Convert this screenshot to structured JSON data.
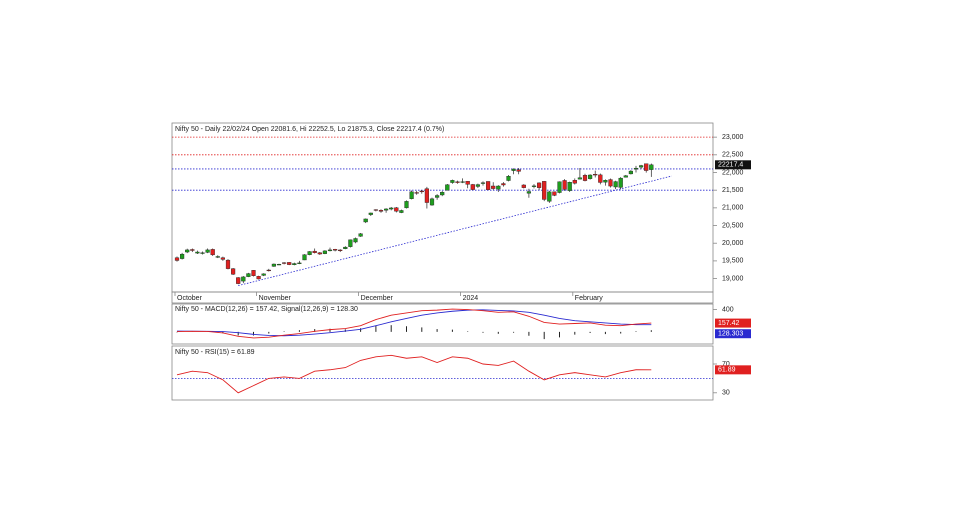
{
  "chart_data": [
    {
      "type": "candlestick",
      "title": "Nifty 50 - Daily 22/02/24 Open 22081.6, Hi 22252.5, Lo 21875.3, Close 22217.4 (0.7%)",
      "categories": [
        "October",
        null,
        null,
        null,
        null,
        null,
        null,
        null,
        null,
        null,
        null,
        null,
        null,
        null,
        null,
        null,
        "November",
        null,
        null,
        null,
        null,
        null,
        null,
        null,
        null,
        null,
        null,
        null,
        null,
        null,
        null,
        null,
        null,
        null,
        null,
        null,
        "December",
        null,
        null,
        null,
        null,
        null,
        null,
        null,
        null,
        null,
        null,
        null,
        null,
        null,
        null,
        null,
        null,
        null,
        null,
        null,
        "2024",
        null,
        null,
        null,
        null,
        null,
        null,
        null,
        null,
        null,
        null,
        null,
        null,
        null,
        null,
        null,
        null,
        null,
        null,
        null,
        null,
        null,
        "February",
        null,
        null,
        null,
        null,
        null,
        null,
        null,
        null,
        null,
        null,
        null,
        null,
        null,
        null,
        null
      ],
      "open": [
        19590,
        19565,
        19750,
        19822,
        19720,
        19730,
        19740,
        19825,
        19600,
        19590,
        19521,
        19280,
        19028,
        18928,
        19054,
        19233,
        19064,
        19090,
        19241,
        19345,
        19405,
        19449,
        19457,
        19390,
        19430,
        19526,
        19675,
        19775,
        19731,
        19704,
        19784,
        19828,
        19809,
        19844,
        19902,
        20034,
        20195,
        20601,
        20809,
        20950,
        20932,
        20934,
        20966,
        21004,
        20866,
        21000,
        21258,
        21434,
        21477,
        21543,
        21079,
        21295,
        21365,
        21497,
        21715,
        21737,
        21727,
        21752,
        21661,
        21605,
        21705,
        21747,
        21618,
        21529,
        21688,
        21773,
        22053,
        22080,
        21647,
        21414,
        21615,
        21706,
        21750,
        21185,
        21454,
        21433,
        21775,
        21487,
        21780,
        21812,
        21921,
        21825,
        21950,
        21933,
        21727,
        21800,
        21590,
        21578,
        21865,
        21961,
        22095,
        22152,
        22248,
        22081.6
      ],
      "high": [
        19625,
        19725,
        19845,
        19850,
        19790,
        19765,
        19850,
        19850,
        19660,
        19620,
        19550,
        19300,
        19040,
        19070,
        19160,
        19240,
        19080,
        19150,
        19275,
        19425,
        19420,
        19465,
        19465,
        19450,
        19500,
        19690,
        19775,
        19850,
        19750,
        19800,
        19875,
        19840,
        19830,
        19915,
        20105,
        20160,
        20290,
        20700,
        20865,
        20960,
        20960,
        20990,
        21025,
        21025,
        20950,
        21210,
        21490,
        21480,
        21505,
        21595,
        21290,
        21390,
        21475,
        21675,
        21800,
        21770,
        21835,
        21755,
        21677,
        21685,
        21750,
        21750,
        21725,
        21640,
        21726,
        21928,
        22115,
        22124,
        21670,
        21540,
        21670,
        21720,
        21760,
        21482,
        21460,
        21750,
        21813,
        21741,
        21832,
        22126,
        21964,
        21951,
        22053,
        21970,
        21805,
        21832,
        21766,
        21870,
        21931,
        22068,
        22187,
        22216,
        22249,
        22252.5
      ],
      "low": [
        19480,
        19540,
        19720,
        19750,
        19695,
        19680,
        19720,
        19640,
        19580,
        19500,
        19260,
        19100,
        18840,
        18870,
        19040,
        19060,
        18975,
        19070,
        19200,
        19330,
        19380,
        19400,
        19380,
        19375,
        19410,
        19520,
        19660,
        19710,
        19670,
        19690,
        19770,
        19770,
        19750,
        19830,
        19880,
        20000,
        20180,
        20570,
        20770,
        20900,
        20860,
        20860,
        20930,
        20870,
        20850,
        20980,
        21240,
        21370,
        21400,
        20980,
        21060,
        21230,
        21330,
        21490,
        21680,
        21680,
        21700,
        21555,
        21500,
        21560,
        21630,
        21500,
        21500,
        21450,
        21600,
        21750,
        21950,
        21950,
        21550,
        21285,
        21550,
        21500,
        21190,
        21140,
        21330,
        21410,
        21480,
        21450,
        21660,
        21805,
        21750,
        21800,
        21860,
        21665,
        21629,
        21574,
        21530,
        21530,
        21860,
        21945,
        22000,
        22100,
        21997,
        21875.3
      ],
      "close": [
        19512,
        19690,
        19811,
        19794,
        19751,
        19731,
        19811,
        19671,
        19624,
        19542,
        19281,
        19122,
        18857,
        19047,
        19141,
        19079,
        18989,
        19133,
        19230,
        19411,
        19406,
        19443,
        19395,
        19425,
        19443,
        19675,
        19765,
        19731,
        19694,
        19783,
        19811,
        19802,
        19794,
        19889,
        20096,
        20133,
        20267,
        20686,
        20855,
        20937,
        20901,
        20969,
        20997,
        20906,
        20926,
        21183,
        21456,
        21418,
        21453,
        21150,
        21255,
        21349,
        21441,
        21654,
        21778,
        21731,
        21741,
        21665,
        21517,
        21658,
        21710,
        21513,
        21545,
        21618,
        21647,
        21894,
        22097,
        22032,
        21571,
        21462,
        21622,
        21571,
        21238,
        21453,
        21352,
        21737,
        21522,
        21725,
        21697,
        21853,
        21771,
        21929,
        21930,
        21718,
        21782,
        21616,
        21743,
        21840,
        21910,
        22040,
        22122,
        22197,
        22055,
        22217.4
      ],
      "up_color": "#1e9e1e",
      "down_color": "#e02020",
      "ylim": [
        18620,
        23400
      ],
      "yticks": [
        {
          "value": 23000,
          "label": "23,000"
        },
        {
          "value": 22500,
          "label": "22,500"
        },
        {
          "value": 22000,
          "label": "22,000"
        },
        {
          "value": 21500,
          "label": "21,500"
        },
        {
          "value": 21000,
          "label": "21,000"
        },
        {
          "value": 20500,
          "label": "20,500"
        },
        {
          "value": 20000,
          "label": "20,000"
        },
        {
          "value": 19500,
          "label": "19,500"
        },
        {
          "value": 19000,
          "label": "19,000"
        }
      ],
      "levels": [
        {
          "value": 23000,
          "color": "#e02020"
        },
        {
          "value": 22500,
          "color": "#e02020"
        },
        {
          "value": 22100,
          "color": "#2a2ad0"
        },
        {
          "value": 21500,
          "color": "#2a2ad0"
        }
      ],
      "trendline": {
        "x": [
          12,
          97
        ],
        "values": [
          18800,
          21900
        ],
        "color": "#2a2ad0"
      },
      "price_tag": {
        "value": 22217.4,
        "label": "22217.4"
      }
    },
    {
      "type": "macd",
      "title": "Nifty 50 - MACD(12,26) = 157.42, Signal(12,26,9) = 128.30",
      "x": [
        0,
        3,
        6,
        9,
        12,
        15,
        18,
        21,
        24,
        27,
        30,
        33,
        36,
        39,
        42,
        45,
        48,
        51,
        54,
        57,
        60,
        63,
        66,
        69,
        72,
        75,
        78,
        81,
        84,
        87,
        90,
        93
      ],
      "macd": [
        5,
        10,
        8,
        -20,
        -80,
        -110,
        -95,
        -60,
        -30,
        10,
        40,
        60,
        110,
        220,
        300,
        340,
        380,
        390,
        410,
        400,
        380,
        350,
        360,
        280,
        170,
        140,
        150,
        160,
        120,
        110,
        140,
        157.42
      ],
      "signal": [
        15,
        12,
        10,
        5,
        -15,
        -45,
        -65,
        -70,
        -60,
        -40,
        -15,
        15,
        45,
        110,
        180,
        240,
        300,
        340,
        370,
        390,
        395,
        385,
        375,
        350,
        300,
        240,
        200,
        180,
        160,
        140,
        130,
        128.3
      ],
      "histogram": [
        -10,
        -2,
        -2,
        -25,
        -65,
        -65,
        -30,
        10,
        30,
        50,
        55,
        45,
        65,
        110,
        120,
        100,
        80,
        50,
        40,
        10,
        -15,
        -35,
        -15,
        -70,
        -130,
        -100,
        -50,
        -20,
        -40,
        -30,
        10,
        29.12
      ],
      "macd_color": "#e02020",
      "signal_color": "#2a2ad0",
      "ylim": [
        -200,
        500
      ],
      "yticks": [
        400
      ],
      "tags": [
        {
          "value": 157.42,
          "label": "157.42",
          "color": "#e02020"
        },
        {
          "value": 128.303,
          "label": "128.303",
          "color": "#2a2ad0"
        }
      ]
    },
    {
      "type": "rsi",
      "title": "Nifty 50 - RSI(15) = 61.89",
      "x": [
        0,
        3,
        6,
        9,
        12,
        15,
        18,
        21,
        24,
        27,
        30,
        33,
        36,
        39,
        42,
        45,
        48,
        51,
        54,
        57,
        60,
        63,
        66,
        69,
        72,
        75,
        78,
        81,
        84,
        87,
        90,
        93
      ],
      "values": [
        55,
        60,
        58,
        48,
        30,
        40,
        50,
        52,
        50,
        60,
        62,
        65,
        75,
        80,
        82,
        78,
        80,
        72,
        80,
        78,
        70,
        68,
        74,
        60,
        48,
        55,
        58,
        55,
        52,
        58,
        62,
        61.89
      ],
      "color": "#e02020",
      "ylim": [
        20,
        95
      ],
      "yticks": [
        70,
        30
      ],
      "levels": [
        {
          "value": 50,
          "color": "#2a2ad0"
        }
      ],
      "tag": {
        "value": 61.89,
        "label": "61.89",
        "color": "#e02020"
      }
    }
  ]
}
